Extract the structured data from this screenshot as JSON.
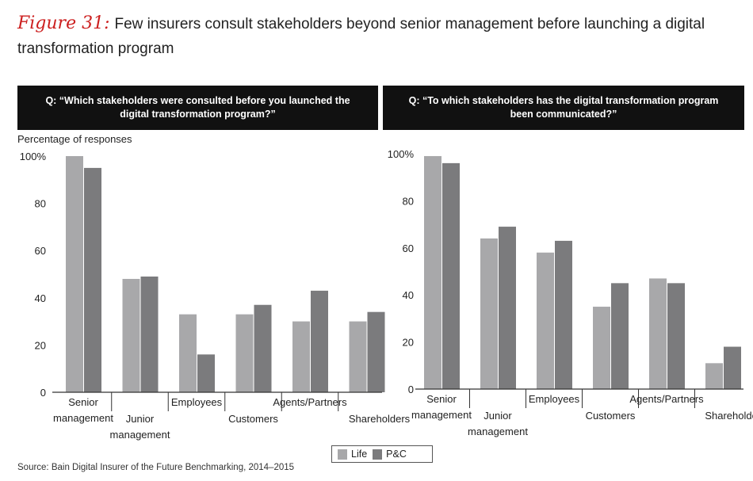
{
  "title": {
    "figure_label": "Figure 31:",
    "text": "Few insurers consult stakeholders beyond senior management before launching a digital transformation program"
  },
  "y_axis_caption": "Percentage of responses",
  "source": "Source: Bain Digital Insurer of the Future Benchmarking, 2014–2015",
  "legend": [
    {
      "name": "Life",
      "color": "#a8a8aa"
    },
    {
      "name": "P&C",
      "color": "#7b7b7d"
    }
  ],
  "chart_data": [
    {
      "type": "bar",
      "title": "Q: “Which stakeholders were consulted before you launched the digital transformation program?”",
      "ylabel": "Percentage of responses",
      "ylim": [
        0,
        100
      ],
      "yticks": [
        "0",
        "20",
        "40",
        "60",
        "80",
        "100%"
      ],
      "categories": [
        "Senior management",
        "Junior management",
        "Employees",
        "Customers",
        "Agents/Partners",
        "Shareholders"
      ],
      "category_lines": [
        [
          "Senior",
          "management"
        ],
        [
          "Junior",
          "management"
        ],
        [
          "Employees"
        ],
        [
          "Customers"
        ],
        [
          "Agents/Partners"
        ],
        [
          "Shareholders"
        ]
      ],
      "series": [
        {
          "name": "Life",
          "values": [
            100,
            48,
            33,
            33,
            30,
            30
          ]
        },
        {
          "name": "P&C",
          "values": [
            95,
            49,
            16,
            37,
            43,
            34
          ]
        }
      ]
    },
    {
      "type": "bar",
      "title": "Q: “To which stakeholders has the digital transformation program been communicated?”",
      "ylabel": "",
      "ylim": [
        0,
        100
      ],
      "yticks": [
        "0",
        "20",
        "40",
        "60",
        "80",
        "100%"
      ],
      "categories": [
        "Senior management",
        "Junior management",
        "Employees",
        "Customers",
        "Agents/Partners",
        "Shareholders"
      ],
      "category_lines": [
        [
          "Senior",
          "management"
        ],
        [
          "Junior",
          "management"
        ],
        [
          "Employees"
        ],
        [
          "Customers"
        ],
        [
          "Agents/Partners"
        ],
        [
          "Shareholders"
        ]
      ],
      "series": [
        {
          "name": "Life",
          "values": [
            99,
            64,
            58,
            35,
            47,
            11
          ]
        },
        {
          "name": "P&C",
          "values": [
            96,
            69,
            63,
            45,
            45,
            18
          ]
        }
      ]
    }
  ]
}
